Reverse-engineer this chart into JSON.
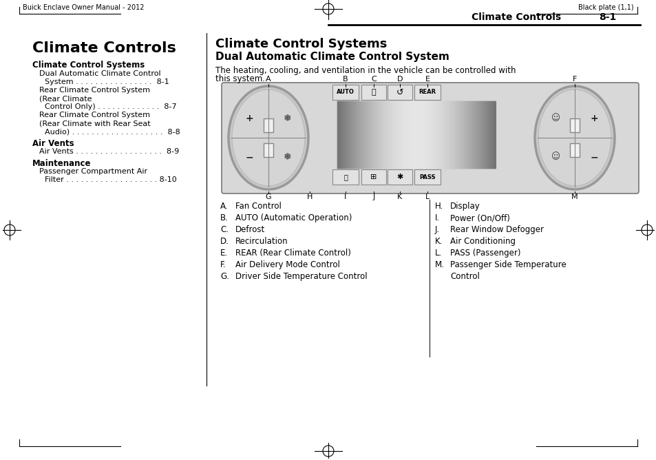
{
  "page_bg": "#ffffff",
  "header_left": "Buick Enclave Owner Manual - 2012",
  "header_right": "Black plate (1,1)",
  "header_section": "Climate Controls",
  "header_page": "8-1",
  "left_title": "Climate Controls",
  "left_subtitle1": "Climate Control Systems",
  "left_subtitle2": "Air Vents",
  "left_subtitle3": "Maintenance",
  "right_title1": "Climate Control Systems",
  "right_title2": "Dual Automatic Climate Control System",
  "right_intro_line1": "The heating, cooling, and ventilation in the vehicle can be controlled with",
  "right_intro_line2": "this system.",
  "legend_left": [
    [
      "A.",
      "Fan Control"
    ],
    [
      "B.",
      "AUTO (Automatic Operation)"
    ],
    [
      "C.",
      "Defrost"
    ],
    [
      "D.",
      "Recirculation"
    ],
    [
      "E.",
      "REAR (Rear Climate Control)"
    ],
    [
      "F.",
      "Air Delivery Mode Control"
    ],
    [
      "G.",
      "Driver Side Temperature Control"
    ]
  ],
  "legend_right": [
    [
      "H.",
      "Display"
    ],
    [
      "I.",
      "Power (On/Off)"
    ],
    [
      "J.",
      "Rear Window Defogger"
    ],
    [
      "K.",
      "Air Conditioning"
    ],
    [
      "L.",
      "PASS (Passenger)"
    ],
    [
      "M.",
      "Passenger Side Temperature"
    ],
    [
      "",
      "Control"
    ]
  ],
  "text_color": "#000000"
}
